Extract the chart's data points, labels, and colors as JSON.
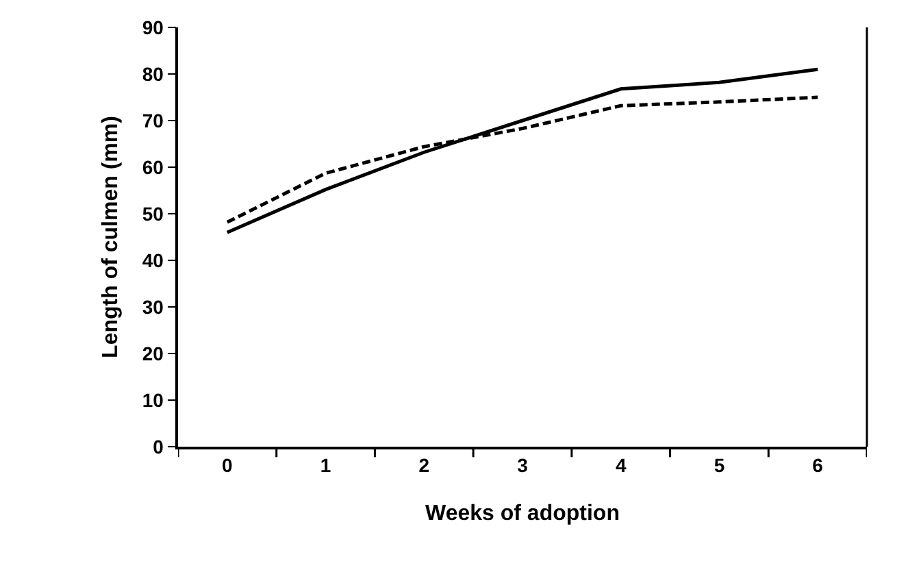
{
  "chart_data": {
    "type": "line",
    "xlabel": "Weeks of adoption",
    "ylabel": "Length of culmen (mm)",
    "categories": [
      "0",
      "1",
      "2",
      "3",
      "4",
      "5",
      "6"
    ],
    "series": [
      {
        "color": "#000000",
        "line_style": "solid",
        "values": [
          46,
          55.2,
          63.2,
          70,
          76.8,
          78.2,
          81
        ]
      },
      {
        "color": "#000000",
        "line_style": "dashed",
        "values": [
          48.2,
          58.7,
          64.4,
          68.3,
          73.2,
          74,
          75
        ]
      }
    ],
    "ylim": [
      0,
      90
    ],
    "yticks": [
      0,
      10,
      20,
      30,
      40,
      50,
      60,
      70,
      80,
      90
    ],
    "grid": false,
    "marker": "none"
  }
}
